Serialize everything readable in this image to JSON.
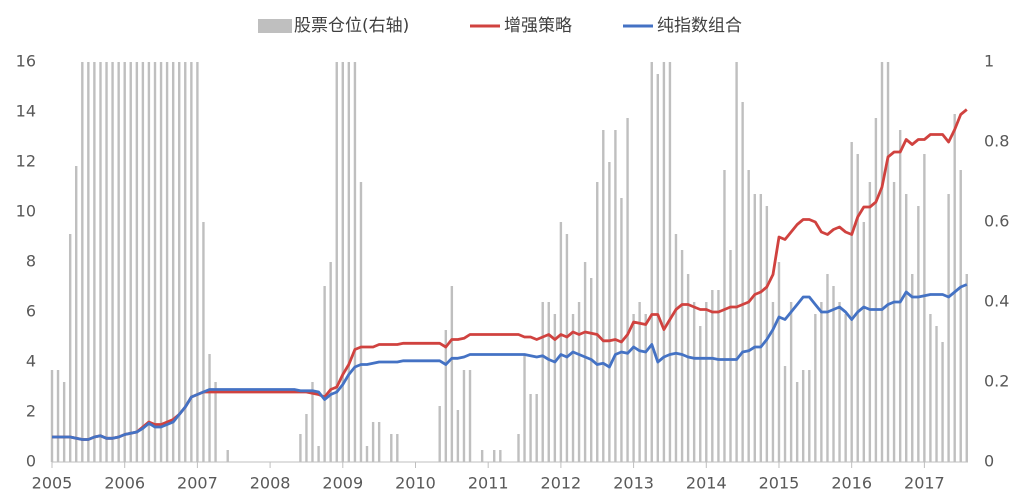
{
  "chart_data": {
    "type": "combo",
    "x": [
      2005,
      2005.083,
      2005.167,
      2005.25,
      2005.333,
      2005.417,
      2005.5,
      2005.583,
      2005.667,
      2005.75,
      2005.833,
      2005.917,
      2006,
      2006.083,
      2006.167,
      2006.25,
      2006.333,
      2006.417,
      2006.5,
      2006.583,
      2006.667,
      2006.75,
      2006.833,
      2006.917,
      2007,
      2007.083,
      2007.167,
      2007.25,
      2007.333,
      2007.417,
      2007.5,
      2007.583,
      2007.667,
      2007.75,
      2007.833,
      2007.917,
      2008,
      2008.083,
      2008.167,
      2008.25,
      2008.333,
      2008.417,
      2008.5,
      2008.583,
      2008.667,
      2008.75,
      2008.833,
      2008.917,
      2009,
      2009.083,
      2009.167,
      2009.25,
      2009.333,
      2009.417,
      2009.5,
      2009.583,
      2009.667,
      2009.75,
      2009.833,
      2009.917,
      2010,
      2010.083,
      2010.167,
      2010.25,
      2010.333,
      2010.417,
      2010.5,
      2010.583,
      2010.667,
      2010.75,
      2010.833,
      2010.917,
      2011,
      2011.083,
      2011.167,
      2011.25,
      2011.333,
      2011.417,
      2011.5,
      2011.583,
      2011.667,
      2011.75,
      2011.833,
      2011.917,
      2012,
      2012.083,
      2012.167,
      2012.25,
      2012.333,
      2012.417,
      2012.5,
      2012.583,
      2012.667,
      2012.75,
      2012.833,
      2012.917,
      2013,
      2013.083,
      2013.167,
      2013.25,
      2013.333,
      2013.417,
      2013.5,
      2013.583,
      2013.667,
      2013.75,
      2013.833,
      2013.917,
      2014,
      2014.083,
      2014.167,
      2014.25,
      2014.333,
      2014.417,
      2014.5,
      2014.583,
      2014.667,
      2014.75,
      2014.833,
      2014.917,
      2015,
      2015.083,
      2015.167,
      2015.25,
      2015.333,
      2015.417,
      2015.5,
      2015.583,
      2015.667,
      2015.75,
      2015.833,
      2015.917,
      2016,
      2016.083,
      2016.167,
      2016.25,
      2016.333,
      2016.417,
      2016.5,
      2016.583,
      2016.667,
      2016.75,
      2016.833,
      2016.917,
      2017,
      2017.083,
      2017.167,
      2017.25,
      2017.333,
      2017.417,
      2017.5,
      2017.583
    ],
    "series": [
      {
        "name": "股票仓位(右轴)",
        "kind": "bar",
        "axis": "y2",
        "color": "#bfbfbf",
        "values": [
          0.23,
          0.23,
          0.2,
          0.57,
          0.74,
          1,
          1,
          1,
          1,
          1,
          1,
          1,
          1,
          1,
          1,
          1,
          1,
          1,
          1,
          1,
          1,
          1,
          1,
          1,
          1,
          0.6,
          0.27,
          0.2,
          0,
          0.03,
          0,
          0,
          0,
          0,
          0,
          0,
          0,
          0,
          0,
          0,
          0,
          0.07,
          0.12,
          0.2,
          0.04,
          0.44,
          0.5,
          1,
          1,
          1,
          1,
          0.7,
          0.04,
          0.1,
          0.1,
          0,
          0.07,
          0.07,
          0,
          0,
          0,
          0,
          0,
          0,
          0.14,
          0.33,
          0.44,
          0.13,
          0.23,
          0.23,
          0,
          0.03,
          0,
          0.03,
          0.03,
          0,
          0,
          0.07,
          0.27,
          0.17,
          0.17,
          0.4,
          0.4,
          0.37,
          0.6,
          0.57,
          0.37,
          0.4,
          0.5,
          0.46,
          0.7,
          0.83,
          0.75,
          0.83,
          0.66,
          0.86,
          0.37,
          0.4,
          0.37,
          1,
          0.97,
          1,
          1,
          0.57,
          0.53,
          0.47,
          0.4,
          0.34,
          0.4,
          0.43,
          0.43,
          0.73,
          0.53,
          1,
          0.9,
          0.73,
          0.67,
          0.67,
          0.64,
          0.4,
          0.5,
          0.24,
          0.4,
          0.2,
          0.23,
          0.23,
          0.37,
          0.4,
          0.47,
          0.44,
          0.4,
          0.37,
          0.8,
          0.77,
          0.6,
          0.7,
          0.86,
          1,
          1,
          0.7,
          0.83,
          0.67,
          0.47,
          0.64,
          0.77,
          0.37,
          0.34,
          0.3,
          0.67,
          0.87,
          0.73,
          0.47
        ]
      },
      {
        "name": "增强策略",
        "kind": "line",
        "color": "#d0423f",
        "values": [
          1,
          1,
          1,
          1,
          0.95,
          0.9,
          0.9,
          1,
          1.05,
          0.95,
          0.95,
          1,
          1.1,
          1.15,
          1.2,
          1.4,
          1.6,
          1.5,
          1.5,
          1.6,
          1.7,
          1.9,
          2.2,
          2.6,
          2.7,
          2.8,
          2.8,
          2.8,
          2.8,
          2.8,
          2.8,
          2.8,
          2.8,
          2.8,
          2.8,
          2.8,
          2.8,
          2.8,
          2.8,
          2.8,
          2.8,
          2.8,
          2.8,
          2.75,
          2.7,
          2.6,
          2.9,
          3,
          3.5,
          3.9,
          4.5,
          4.6,
          4.6,
          4.6,
          4.7,
          4.7,
          4.7,
          4.7,
          4.75,
          4.75,
          4.75,
          4.75,
          4.75,
          4.75,
          4.75,
          4.6,
          4.9,
          4.9,
          4.95,
          5.1,
          5.1,
          5.1,
          5.1,
          5.1,
          5.1,
          5.1,
          5.1,
          5.1,
          5,
          5,
          4.9,
          5,
          5.1,
          4.9,
          5.1,
          5,
          5.2,
          5.1,
          5.2,
          5.15,
          5.1,
          4.85,
          4.85,
          4.9,
          4.8,
          5.1,
          5.6,
          5.55,
          5.5,
          5.9,
          5.9,
          5.3,
          5.7,
          6.1,
          6.3,
          6.3,
          6.2,
          6.1,
          6.1,
          6,
          6,
          6.1,
          6.2,
          6.2,
          6.3,
          6.4,
          6.7,
          6.8,
          7,
          7.5,
          9,
          8.9,
          9.2,
          9.5,
          9.7,
          9.7,
          9.6,
          9.2,
          9.1,
          9.3,
          9.4,
          9.2,
          9.1,
          9.8,
          10.2,
          10.2,
          10.4,
          11,
          12.2,
          12.4,
          12.4,
          12.9,
          12.7,
          12.9,
          12.9,
          13.1,
          13.1,
          13.1,
          12.8,
          13.3,
          13.9,
          14.1
        ]
      },
      {
        "name": "纯指数组合",
        "kind": "line",
        "color": "#4472c4",
        "values": [
          1,
          1,
          1,
          1,
          0.95,
          0.9,
          0.9,
          1,
          1.05,
          0.95,
          0.95,
          1,
          1.1,
          1.15,
          1.2,
          1.35,
          1.55,
          1.4,
          1.4,
          1.5,
          1.6,
          1.9,
          2.2,
          2.6,
          2.7,
          2.8,
          2.9,
          2.9,
          2.9,
          2.9,
          2.9,
          2.9,
          2.9,
          2.9,
          2.9,
          2.9,
          2.9,
          2.9,
          2.9,
          2.9,
          2.9,
          2.85,
          2.85,
          2.85,
          2.8,
          2.5,
          2.7,
          2.8,
          3.1,
          3.5,
          3.8,
          3.9,
          3.9,
          3.95,
          4,
          4,
          4,
          4,
          4.05,
          4.05,
          4.05,
          4.05,
          4.05,
          4.05,
          4.05,
          3.9,
          4.15,
          4.15,
          4.2,
          4.3,
          4.3,
          4.3,
          4.3,
          4.3,
          4.3,
          4.3,
          4.3,
          4.3,
          4.3,
          4.25,
          4.2,
          4.25,
          4.1,
          4,
          4.3,
          4.2,
          4.4,
          4.3,
          4.2,
          4.1,
          3.9,
          3.95,
          3.8,
          4.3,
          4.4,
          4.35,
          4.6,
          4.45,
          4.4,
          4.7,
          4,
          4.2,
          4.3,
          4.35,
          4.3,
          4.2,
          4.15,
          4.15,
          4.15,
          4.15,
          4.1,
          4.1,
          4.1,
          4.1,
          4.4,
          4.45,
          4.6,
          4.6,
          4.9,
          5.3,
          5.8,
          5.7,
          6,
          6.3,
          6.6,
          6.6,
          6.3,
          6,
          6,
          6.1,
          6.2,
          6,
          5.7,
          6,
          6.2,
          6.1,
          6.1,
          6.1,
          6.3,
          6.4,
          6.4,
          6.8,
          6.6,
          6.6,
          6.65,
          6.7,
          6.7,
          6.7,
          6.6,
          6.8,
          7,
          7.1
        ]
      }
    ],
    "xlim": [
      2005,
      2017.6
    ],
    "xticks": [
      2005,
      2006,
      2007,
      2008,
      2009,
      2010,
      2011,
      2012,
      2013,
      2014,
      2015,
      2016,
      2017
    ],
    "ylim": [
      0,
      16
    ],
    "yticks": [
      0,
      2,
      4,
      6,
      8,
      10,
      12,
      14,
      16
    ],
    "y2lim": [
      0,
      1
    ],
    "y2ticks": [
      0,
      0.2,
      0.4,
      0.6,
      0.8,
      1
    ],
    "legend": "top",
    "grid": false
  }
}
